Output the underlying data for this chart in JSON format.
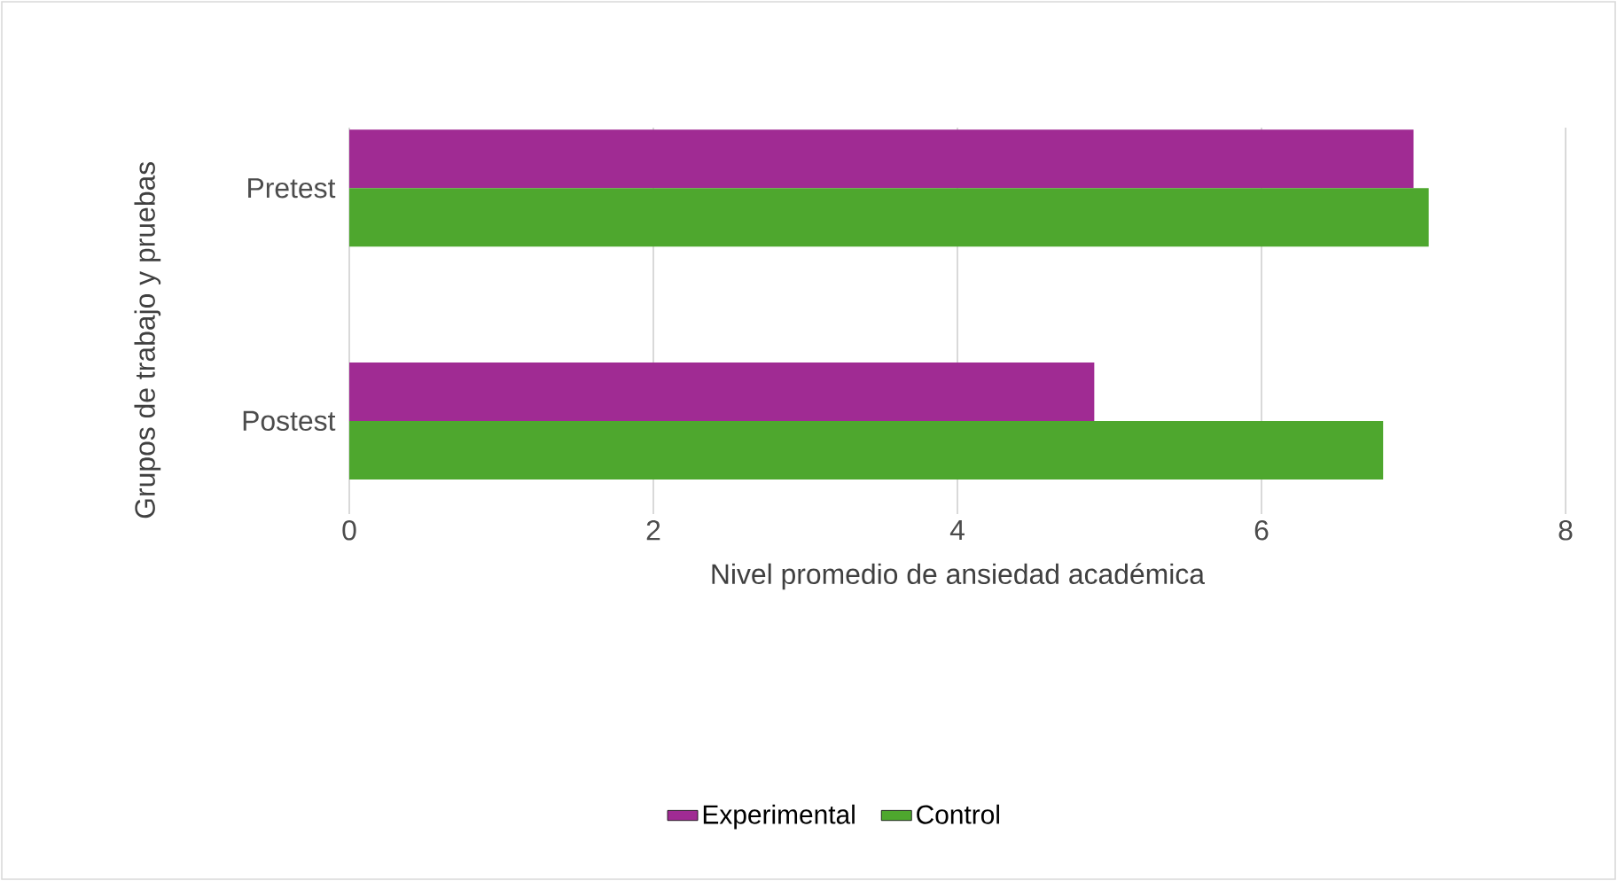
{
  "chart_data": {
    "type": "bar",
    "orientation": "horizontal",
    "categories": [
      "Pretest",
      "Postest"
    ],
    "series": [
      {
        "name": "Experimental",
        "color": "#a02b93",
        "values": [
          7.0,
          4.9
        ]
      },
      {
        "name": "Control",
        "color": "#4ea72e",
        "values": [
          7.1,
          6.8
        ]
      }
    ],
    "xlabel": "Nivel promedio de ansiedad académica",
    "ylabel": "Grupos de trabajo y pruebas",
    "xlim": [
      0,
      8
    ],
    "xticks": [
      0,
      2,
      4,
      6,
      8
    ],
    "grid": "x",
    "legend": "bottom"
  }
}
